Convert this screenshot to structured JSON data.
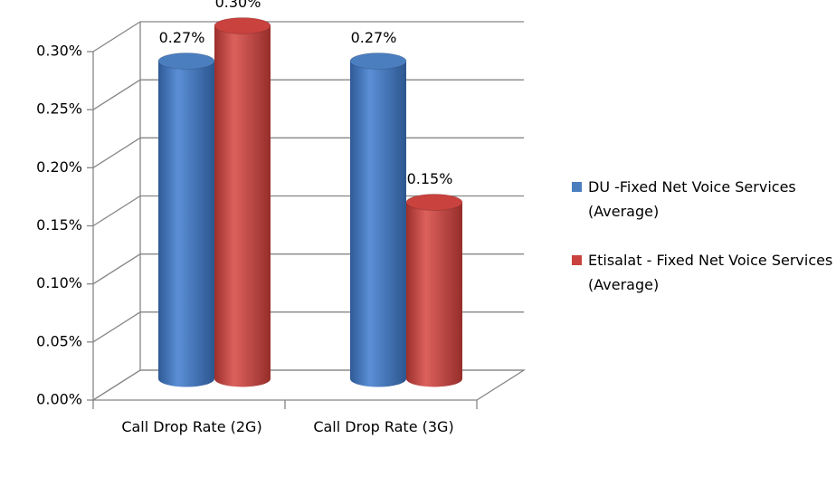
{
  "chart_data": {
    "type": "bar3d",
    "categories": [
      "Call Drop Rate (2G)",
      "Call Drop Rate (3G)"
    ],
    "series": [
      {
        "name": "DU -Fixed Net Voice Services (Average)",
        "color": "#4a7ebf",
        "values": [
          0.27,
          0.27
        ],
        "value_labels": [
          "0.27%",
          "0.27%"
        ]
      },
      {
        "name": "Etisalat - Fixed Net Voice Services (Average)",
        "color": "#c9423e",
        "values": [
          0.3,
          0.15
        ],
        "value_labels": [
          "0.30%",
          "0.15%"
        ]
      }
    ],
    "ylim": [
      0,
      0.3
    ],
    "yticks": [
      {
        "value": 0,
        "label": "0.00%"
      },
      {
        "value": 0.05,
        "label": "0.05%"
      },
      {
        "value": 0.1,
        "label": "0.10%"
      },
      {
        "value": 0.15,
        "label": "0.15%"
      },
      {
        "value": 0.2,
        "label": "0.20%"
      },
      {
        "value": 0.25,
        "label": "0.25%"
      },
      {
        "value": 0.3,
        "label": "0.30%"
      }
    ],
    "grid": true,
    "legend": "right"
  }
}
